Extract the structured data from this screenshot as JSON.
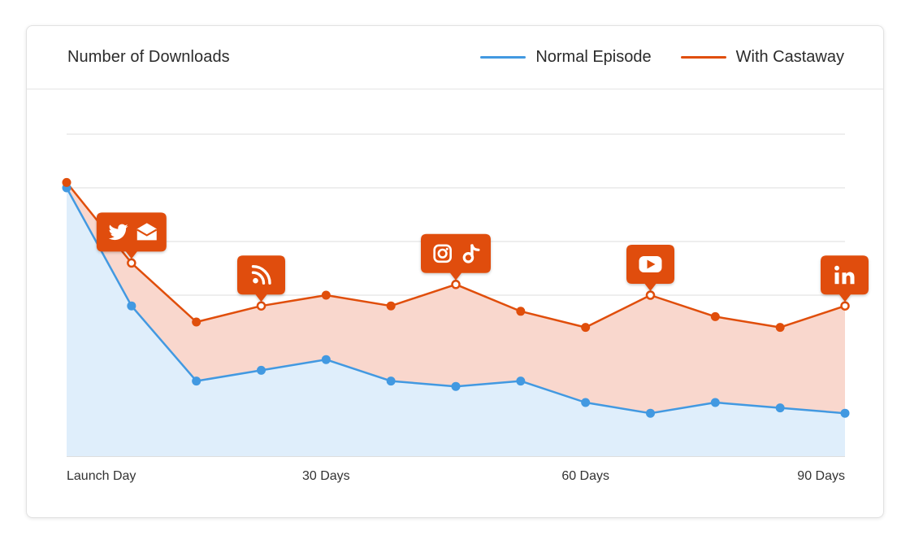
{
  "chart_data": {
    "type": "line",
    "title": "Number of Downloads",
    "x_tick_labels": [
      {
        "x": 0,
        "label": "Launch Day"
      },
      {
        "x": 30,
        "label": "30 Days"
      },
      {
        "x": 60,
        "label": "60 Days"
      },
      {
        "x": 90,
        "label": "90 Days"
      }
    ],
    "x": [
      0,
      7.5,
      15,
      22.5,
      30,
      37.5,
      45,
      52.5,
      60,
      67.5,
      75,
      82.5,
      90
    ],
    "xlim": [
      0,
      90
    ],
    "ylim": [
      0,
      6
    ],
    "grid": true,
    "legend_position": "top-right",
    "series": [
      {
        "name": "Normal Episode",
        "color": "#4299e1",
        "fill": "#dfeefb",
        "values": [
          5.0,
          2.8,
          1.4,
          1.6,
          1.8,
          1.4,
          1.3,
          1.4,
          1.0,
          0.8,
          1.0,
          0.9,
          0.8
        ]
      },
      {
        "name": "With Castaway",
        "color": "#e04e0b",
        "fill": "#f9d7cd",
        "values": [
          5.1,
          3.6,
          2.5,
          2.8,
          3.0,
          2.8,
          3.2,
          2.7,
          2.4,
          3.0,
          2.6,
          2.4,
          2.8
        ]
      }
    ],
    "annotations": [
      {
        "index": 1,
        "icons": [
          "twitter-icon",
          "mail-icon"
        ]
      },
      {
        "index": 3,
        "icons": [
          "rss-icon"
        ]
      },
      {
        "index": 6,
        "icons": [
          "instagram-icon",
          "tiktok-icon"
        ]
      },
      {
        "index": 9,
        "icons": [
          "youtube-icon"
        ]
      },
      {
        "index": 12,
        "icons": [
          "linkedin-icon"
        ]
      }
    ]
  },
  "colors": {
    "grid": "#dedede",
    "text": "#333333",
    "marker_fill": "#ffffff"
  }
}
